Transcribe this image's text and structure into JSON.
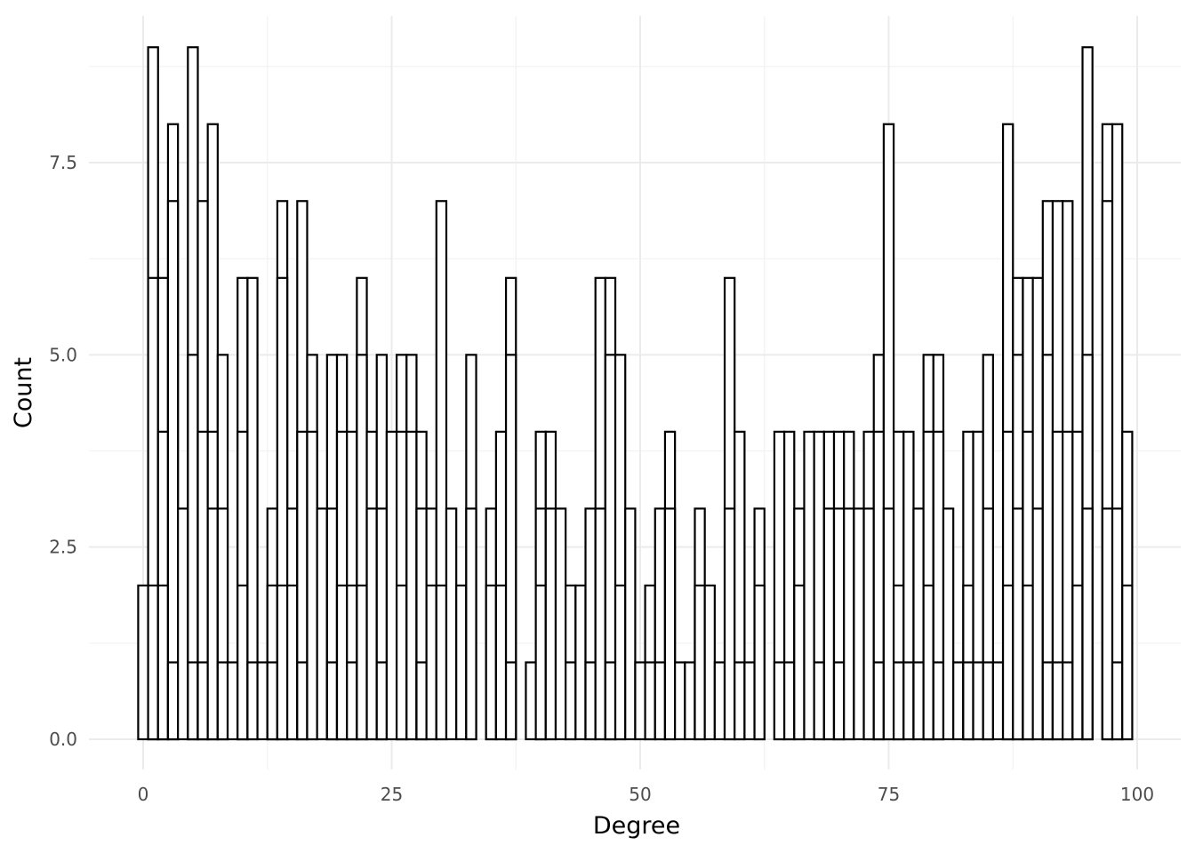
{
  "chart_data": {
    "type": "bar",
    "subtype": "histogram",
    "title": "",
    "xlabel": "Degree",
    "ylabel": "Count",
    "xlim": [
      -0.5,
      99.5
    ],
    "ylim": [
      0,
      9
    ],
    "x_ticks": [
      0,
      25,
      50,
      75,
      100
    ],
    "x_tick_labels": [
      "0",
      "25",
      "50",
      "75",
      "100"
    ],
    "y_ticks": [
      0,
      2.5,
      5,
      7.5
    ],
    "y_tick_labels": [
      "0.0",
      "2.5",
      "5.0",
      "7.5"
    ],
    "grid": true,
    "bar_fill": "#ffffff",
    "bar_outline": "#000000",
    "bars": [
      {
        "x": 0,
        "segments": [
          2
        ]
      },
      {
        "x": 1,
        "segments": [
          2,
          6,
          9
        ]
      },
      {
        "x": 2,
        "segments": [
          2,
          4,
          6
        ]
      },
      {
        "x": 3,
        "segments": [
          1,
          7,
          8
        ]
      },
      {
        "x": 4,
        "segments": [
          3
        ]
      },
      {
        "x": 5,
        "segments": [
          1,
          5,
          9
        ]
      },
      {
        "x": 6,
        "segments": [
          1,
          4,
          7
        ]
      },
      {
        "x": 7,
        "segments": [
          3,
          4,
          8
        ]
      },
      {
        "x": 8,
        "segments": [
          1,
          3,
          5
        ]
      },
      {
        "x": 9,
        "segments": [
          1
        ]
      },
      {
        "x": 10,
        "segments": [
          2,
          4,
          6
        ]
      },
      {
        "x": 11,
        "segments": [
          1,
          6
        ]
      },
      {
        "x": 12,
        "segments": [
          1
        ]
      },
      {
        "x": 13,
        "segments": [
          1,
          2,
          3
        ]
      },
      {
        "x": 14,
        "segments": [
          2,
          6,
          7
        ]
      },
      {
        "x": 15,
        "segments": [
          2,
          3
        ]
      },
      {
        "x": 16,
        "segments": [
          1,
          4,
          7
        ]
      },
      {
        "x": 17,
        "segments": [
          4,
          5
        ]
      },
      {
        "x": 18,
        "segments": [
          3
        ]
      },
      {
        "x": 19,
        "segments": [
          1,
          3,
          5
        ]
      },
      {
        "x": 20,
        "segments": [
          2,
          4,
          5
        ]
      },
      {
        "x": 21,
        "segments": [
          1,
          2,
          4
        ]
      },
      {
        "x": 22,
        "segments": [
          2,
          5,
          6
        ]
      },
      {
        "x": 23,
        "segments": [
          3,
          4
        ]
      },
      {
        "x": 24,
        "segments": [
          1,
          3,
          5
        ]
      },
      {
        "x": 25,
        "segments": [
          4
        ]
      },
      {
        "x": 26,
        "segments": [
          2,
          4,
          5
        ]
      },
      {
        "x": 27,
        "segments": [
          4,
          5
        ]
      },
      {
        "x": 28,
        "segments": [
          1,
          3,
          4
        ]
      },
      {
        "x": 29,
        "segments": [
          2,
          3
        ]
      },
      {
        "x": 30,
        "segments": [
          2,
          7
        ]
      },
      {
        "x": 31,
        "segments": [
          3
        ]
      },
      {
        "x": 32,
        "segments": [
          2
        ]
      },
      {
        "x": 33,
        "segments": [
          3,
          5
        ]
      },
      {
        "x": 35,
        "segments": [
          2,
          3
        ]
      },
      {
        "x": 36,
        "segments": [
          2,
          4
        ]
      },
      {
        "x": 37,
        "segments": [
          1,
          5,
          6
        ]
      },
      {
        "x": 39,
        "segments": [
          1
        ]
      },
      {
        "x": 40,
        "segments": [
          2,
          3,
          4
        ]
      },
      {
        "x": 41,
        "segments": [
          3,
          4
        ]
      },
      {
        "x": 42,
        "segments": [
          3
        ]
      },
      {
        "x": 43,
        "segments": [
          1,
          2
        ]
      },
      {
        "x": 44,
        "segments": [
          2
        ]
      },
      {
        "x": 45,
        "segments": [
          1,
          3
        ]
      },
      {
        "x": 46,
        "segments": [
          3,
          6
        ]
      },
      {
        "x": 47,
        "segments": [
          1,
          5,
          6
        ]
      },
      {
        "x": 48,
        "segments": [
          2,
          5
        ]
      },
      {
        "x": 49,
        "segments": [
          3
        ]
      },
      {
        "x": 50,
        "segments": [
          1
        ]
      },
      {
        "x": 51,
        "segments": [
          1,
          2
        ]
      },
      {
        "x": 52,
        "segments": [
          1,
          3
        ]
      },
      {
        "x": 53,
        "segments": [
          3,
          4
        ]
      },
      {
        "x": 54,
        "segments": [
          1
        ]
      },
      {
        "x": 55,
        "segments": [
          1
        ]
      },
      {
        "x": 56,
        "segments": [
          2,
          3
        ]
      },
      {
        "x": 57,
        "segments": [
          2
        ]
      },
      {
        "x": 58,
        "segments": [
          1
        ]
      },
      {
        "x": 59,
        "segments": [
          3,
          6
        ]
      },
      {
        "x": 60,
        "segments": [
          1,
          4
        ]
      },
      {
        "x": 61,
        "segments": [
          1
        ]
      },
      {
        "x": 62,
        "segments": [
          2,
          3
        ]
      },
      {
        "x": 64,
        "segments": [
          1,
          4
        ]
      },
      {
        "x": 65,
        "segments": [
          1,
          4
        ]
      },
      {
        "x": 66,
        "segments": [
          2,
          3
        ]
      },
      {
        "x": 67,
        "segments": [
          4
        ]
      },
      {
        "x": 68,
        "segments": [
          1,
          4
        ]
      },
      {
        "x": 69,
        "segments": [
          3,
          4
        ]
      },
      {
        "x": 70,
        "segments": [
          1,
          3,
          4
        ]
      },
      {
        "x": 71,
        "segments": [
          3,
          4
        ]
      },
      {
        "x": 72,
        "segments": [
          3
        ]
      },
      {
        "x": 73,
        "segments": [
          3,
          4
        ]
      },
      {
        "x": 74,
        "segments": [
          1,
          4,
          5
        ]
      },
      {
        "x": 75,
        "segments": [
          3,
          8
        ]
      },
      {
        "x": 76,
        "segments": [
          1,
          2,
          4
        ]
      },
      {
        "x": 77,
        "segments": [
          1,
          4
        ]
      },
      {
        "x": 78,
        "segments": [
          1,
          3
        ]
      },
      {
        "x": 79,
        "segments": [
          2,
          4,
          5
        ]
      },
      {
        "x": 80,
        "segments": [
          1,
          4,
          5
        ]
      },
      {
        "x": 81,
        "segments": [
          3
        ]
      },
      {
        "x": 82,
        "segments": [
          1
        ]
      },
      {
        "x": 83,
        "segments": [
          1,
          2,
          4
        ]
      },
      {
        "x": 84,
        "segments": [
          1,
          4
        ]
      },
      {
        "x": 85,
        "segments": [
          1,
          3,
          5
        ]
      },
      {
        "x": 86,
        "segments": [
          1
        ]
      },
      {
        "x": 87,
        "segments": [
          2,
          4,
          8
        ]
      },
      {
        "x": 88,
        "segments": [
          3,
          5,
          6
        ]
      },
      {
        "x": 89,
        "segments": [
          2,
          4,
          6
        ]
      },
      {
        "x": 90,
        "segments": [
          3,
          6
        ]
      },
      {
        "x": 91,
        "segments": [
          1,
          5,
          7
        ]
      },
      {
        "x": 92,
        "segments": [
          1,
          4,
          7
        ]
      },
      {
        "x": 93,
        "segments": [
          1,
          4,
          7
        ]
      },
      {
        "x": 94,
        "segments": [
          2,
          4
        ]
      },
      {
        "x": 95,
        "segments": [
          3,
          5,
          9
        ]
      },
      {
        "x": 97,
        "segments": [
          3,
          7,
          8
        ]
      },
      {
        "x": 98,
        "segments": [
          1,
          3,
          8
        ]
      },
      {
        "x": 99,
        "segments": [
          2,
          4
        ]
      }
    ]
  }
}
